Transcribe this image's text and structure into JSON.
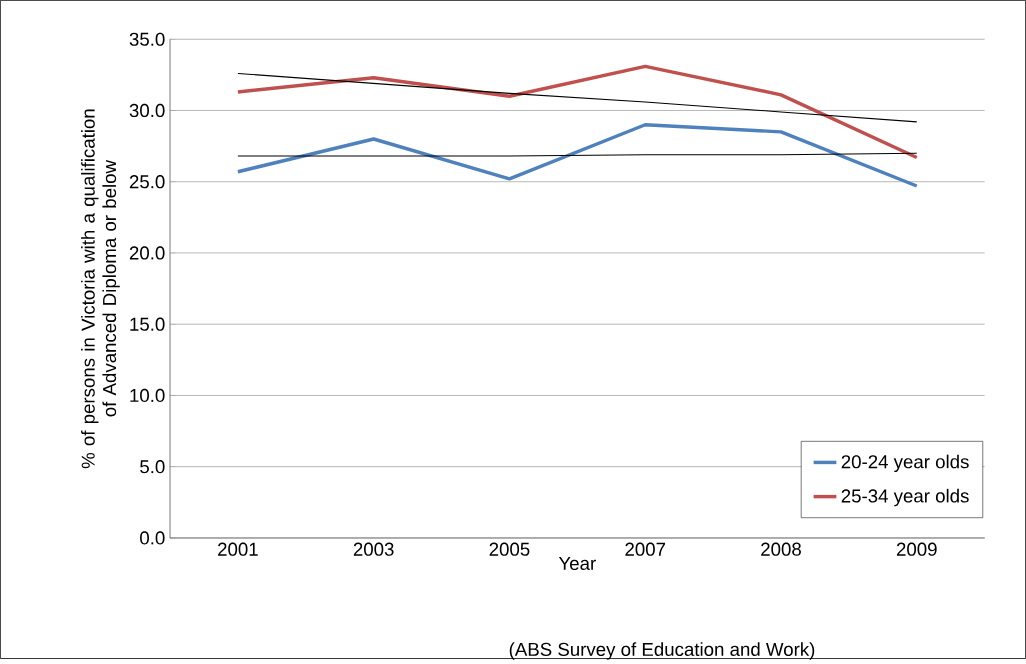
{
  "chart_data": {
    "type": "line",
    "xlabel": "Year",
    "ylabel": "% of persons in Victoria with a qualification of Advanced Diploma or below",
    "annotations": [
      "(ABS Survey of Education and Work)"
    ],
    "categories": [
      "2001",
      "2003",
      "2005",
      "2007",
      "2008",
      "2009"
    ],
    "series": [
      {
        "name": "20-24 year olds",
        "color": "#4f81bd",
        "values": [
          25.7,
          28.0,
          25.2,
          29.0,
          28.5,
          24.7
        ]
      },
      {
        "name": "25-34 year olds",
        "color": "#c0504d",
        "values": [
          31.3,
          32.3,
          31.0,
          33.1,
          31.1,
          26.7
        ]
      },
      {
        "color": "#000000",
        "values": [
          26.8,
          26.8,
          26.8,
          26.9,
          26.9,
          27.0
        ]
      },
      {
        "color": "#000000",
        "values": [
          32.6,
          31.9,
          31.2,
          30.6,
          29.9,
          29.2
        ]
      }
    ],
    "ylim": [
      0,
      35
    ],
    "yticks": [
      {
        "value": 0,
        "label": "0.0"
      },
      {
        "value": 5,
        "label": "5.0"
      },
      {
        "value": 10,
        "label": "10.0"
      },
      {
        "value": 15,
        "label": "15.0"
      },
      {
        "value": 20,
        "label": "20.0"
      },
      {
        "value": 25,
        "label": "25.0"
      },
      {
        "value": 30,
        "label": "30.0"
      },
      {
        "value": 35,
        "label": "35.0"
      }
    ],
    "grid": "y",
    "legend": "bottom right",
    "marker": "none",
    "line_style": "solid"
  }
}
